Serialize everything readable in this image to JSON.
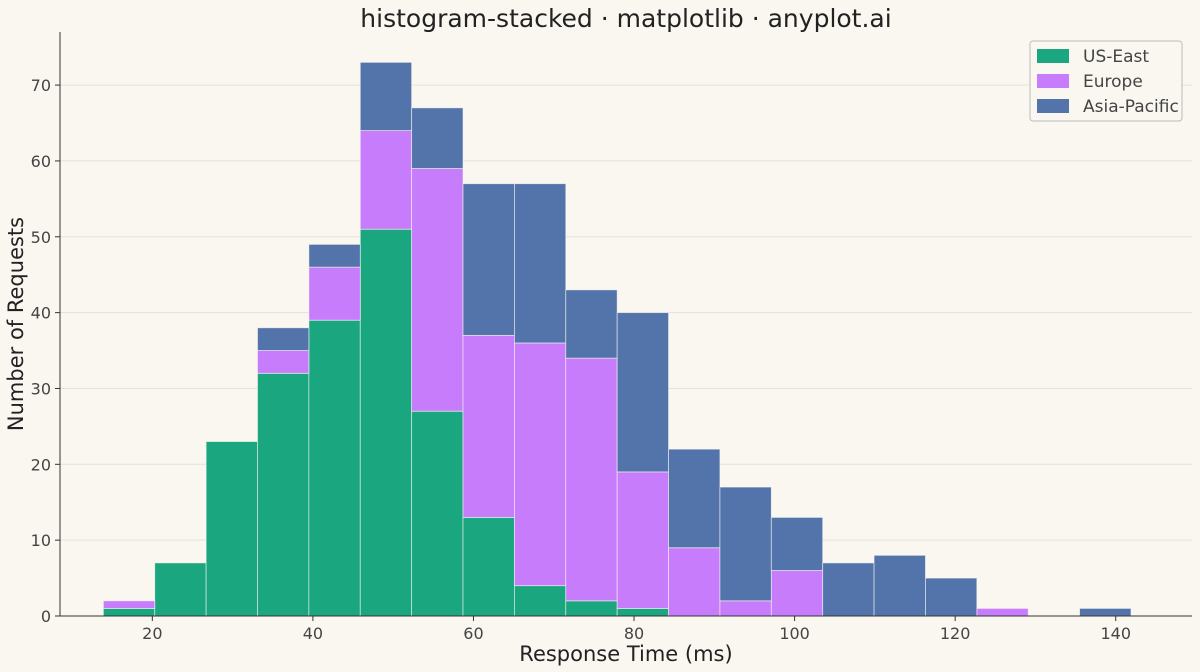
{
  "chart_data": {
    "type": "bar",
    "stacked": true,
    "histogram": true,
    "title": "histogram-stacked · matplotlib · anyplot.ai",
    "xlabel": "Response Time (ms)",
    "ylabel": "Number of Requests",
    "xlim": [
      8.5,
      149.5
    ],
    "ylim": [
      0,
      77
    ],
    "xticks": [
      20,
      40,
      60,
      80,
      100,
      120,
      140
    ],
    "yticks": [
      0,
      10,
      20,
      30,
      40,
      50,
      60,
      70
    ],
    "grid": "horizontal",
    "legend_position": "top-right",
    "bin_edges": [
      13.9,
      20.3,
      26.7,
      33.1,
      39.5,
      45.9,
      52.3,
      58.7,
      65.1,
      71.5,
      77.9,
      84.3,
      90.7,
      97.1,
      103.5,
      109.9,
      116.3,
      122.7,
      129.1,
      135.5,
      141.9
    ],
    "series": [
      {
        "name": "US-East",
        "color": "#1aa67e",
        "values": [
          1,
          7,
          23,
          32,
          39,
          51,
          27,
          13,
          4,
          2,
          1,
          0,
          0,
          0,
          0,
          0,
          0,
          0,
          0,
          0
        ]
      },
      {
        "name": "Europe",
        "color": "#c77dfb",
        "values": [
          1,
          0,
          0,
          3,
          7,
          13,
          32,
          24,
          32,
          32,
          18,
          9,
          2,
          6,
          0,
          0,
          0,
          1,
          0,
          0
        ]
      },
      {
        "name": "Asia-Pacific",
        "color": "#5374ab",
        "values": [
          0,
          0,
          0,
          3,
          3,
          9,
          8,
          20,
          21,
          9,
          21,
          13,
          15,
          7,
          7,
          8,
          5,
          0,
          0,
          1
        ]
      }
    ]
  }
}
